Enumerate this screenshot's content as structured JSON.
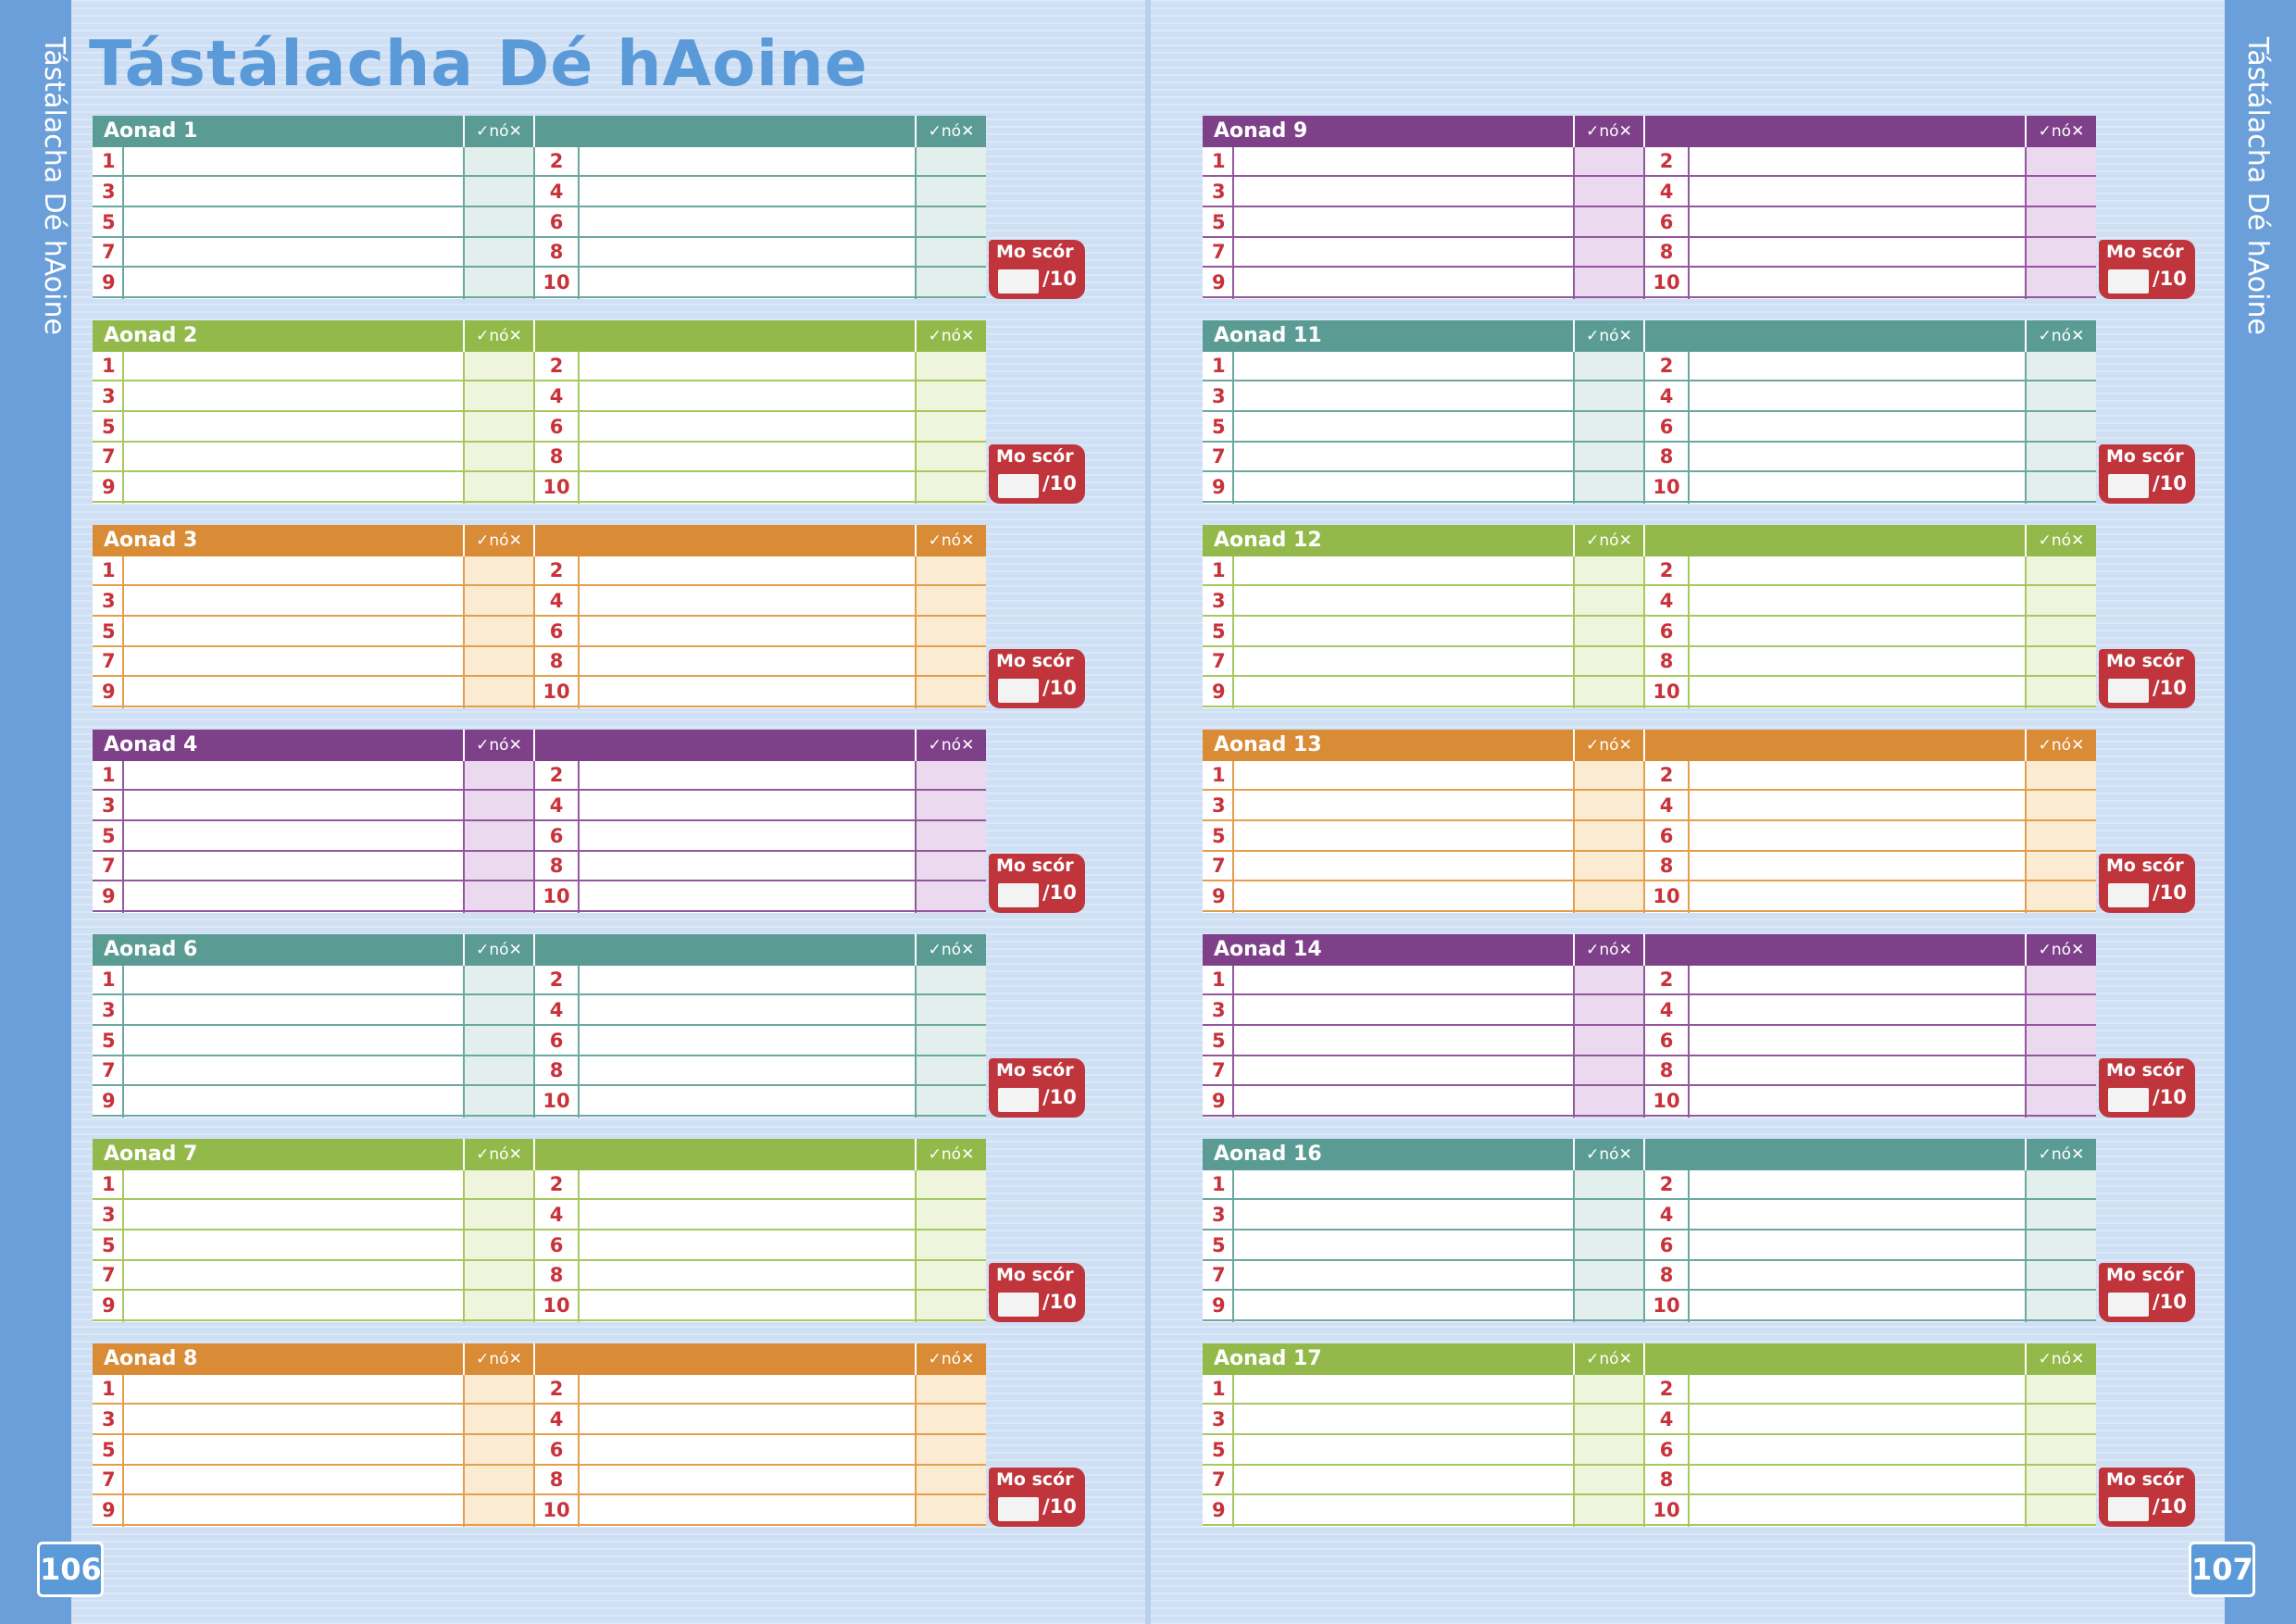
{
  "title": "Tástálacha Dé hAoine",
  "side_title": "Tástálacha Dé hAoine",
  "pages": {
    "left": "106",
    "right": "107"
  },
  "check_header": "✓nó✕",
  "score": {
    "label": "Mo scór",
    "out_of": "/10"
  },
  "row_numbers": [
    [
      "1",
      "2"
    ],
    [
      "3",
      "4"
    ],
    [
      "5",
      "6"
    ],
    [
      "7",
      "8"
    ],
    [
      "9",
      "10"
    ]
  ],
  "colors": {
    "teal": {
      "header": "#5a9c94",
      "line": "#6aa8a0",
      "tint": "#e3efec"
    },
    "green": {
      "header": "#93b94a",
      "line": "#a6c85f",
      "tint": "#eef5dc"
    },
    "orange": {
      "header": "#d98b35",
      "line": "#e49e4c",
      "tint": "#fcebd3"
    },
    "purple": {
      "header": "#7e4189",
      "line": "#93579d",
      "tint": "#ead9ef"
    }
  },
  "units_left": [
    {
      "label": "Aonad 1",
      "color": "teal"
    },
    {
      "label": "Aonad 2",
      "color": "green"
    },
    {
      "label": "Aonad 3",
      "color": "orange"
    },
    {
      "label": "Aonad 4",
      "color": "purple"
    },
    {
      "label": "Aonad 6",
      "color": "teal"
    },
    {
      "label": "Aonad 7",
      "color": "green"
    },
    {
      "label": "Aonad 8",
      "color": "orange"
    }
  ],
  "units_right": [
    {
      "label": "Aonad 9",
      "color": "purple"
    },
    {
      "label": "Aonad 11",
      "color": "teal"
    },
    {
      "label": "Aonad 12",
      "color": "green"
    },
    {
      "label": "Aonad 13",
      "color": "orange"
    },
    {
      "label": "Aonad 14",
      "color": "purple"
    },
    {
      "label": "Aonad 16",
      "color": "teal"
    },
    {
      "label": "Aonad 17",
      "color": "green"
    }
  ]
}
